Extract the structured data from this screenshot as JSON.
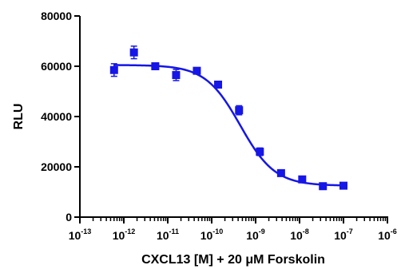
{
  "chart_data": {
    "type": "scatter",
    "xlabel": "CXCL13 [M] + 20 μM Forskolin",
    "ylabel": "RLU",
    "x_scale": "log",
    "xlim": [
      1e-13,
      1e-06
    ],
    "ylim": [
      0,
      80000
    ],
    "x_tick_labels": [
      "10-13",
      "10-12",
      "10-11",
      "10-10",
      "10-9",
      "10-8",
      "10-7",
      "10-6"
    ],
    "y_ticks": [
      0,
      20000,
      40000,
      60000,
      80000
    ],
    "y_tick_labels": [
      "0",
      "20000",
      "40000",
      "60000",
      "80000"
    ],
    "grid": false,
    "color": "#1616e6",
    "marker": "square",
    "series": [
      {
        "points": [
          {
            "x": 6e-13,
            "y": 58500,
            "err": 2500
          },
          {
            "x": 1.7e-12,
            "y": 65500,
            "err": 2500
          },
          {
            "x": 5.2e-12,
            "y": 60000,
            "err": 1000
          },
          {
            "x": 1.55e-11,
            "y": 56500,
            "err": 2200
          },
          {
            "x": 4.6e-11,
            "y": 58200,
            "err": 800
          },
          {
            "x": 1.4e-10,
            "y": 52700,
            "err": 800
          },
          {
            "x": 4.2e-10,
            "y": 42500,
            "err": 1800
          },
          {
            "x": 1.25e-09,
            "y": 26000,
            "err": 1500
          },
          {
            "x": 3.8e-09,
            "y": 17500,
            "err": 600
          },
          {
            "x": 1.15e-08,
            "y": 15000,
            "err": 500
          },
          {
            "x": 3.4e-08,
            "y": 12300,
            "err": 400
          },
          {
            "x": 1e-07,
            "y": 12500,
            "err": 400
          }
        ],
        "fit": {
          "type": "4PL",
          "top": 60500,
          "bottom": 12500,
          "log_ic50": -9.35,
          "hill": -1.1
        }
      }
    ]
  }
}
